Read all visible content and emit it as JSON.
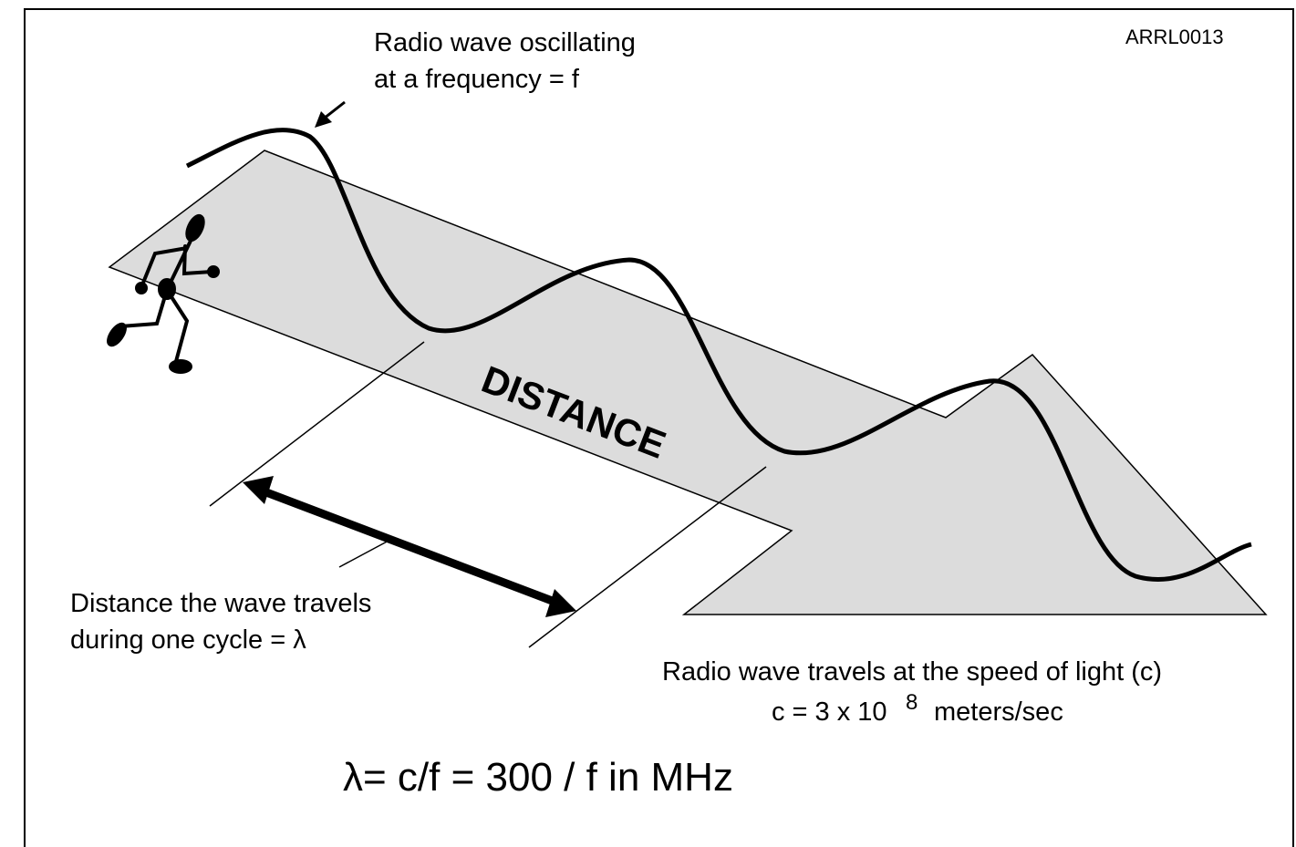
{
  "figure_id": "ARRL0013",
  "wave_label": {
    "line1": "Radio wave oscillating",
    "line2": "at a frequency = f"
  },
  "road_label": "DISTANCE",
  "wavelength_label": {
    "line1": "Distance the wave travels",
    "line2": "during one cycle = λ"
  },
  "speed_label": {
    "line1": "Radio wave travels at the speed of light (c)",
    "line2_base": "c = 3 x 10",
    "line2_exponent": "8",
    "line2_unit": "meters/sec"
  },
  "formula": "λ= c/f = 300 / f in MHz"
}
